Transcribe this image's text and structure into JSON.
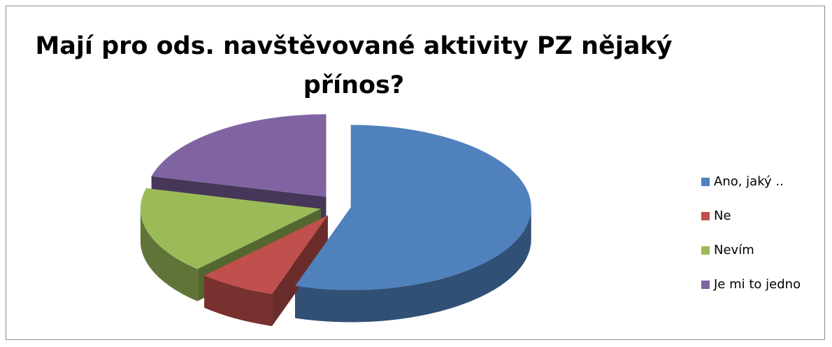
{
  "chart_data": {
    "type": "pie",
    "title": "Mají pro ods. navštěvované aktivity PZ nějaký přínos?",
    "title_lines": [
      "Mají pro ods. navštěvované aktivity PZ nějaký",
      "přínos?"
    ],
    "categories": [
      "Ano, jaký ..",
      "Ne",
      "Nevím",
      "Je mi to jedno"
    ],
    "values": [
      55,
      7,
      17,
      21
    ],
    "colors": [
      "#4f81bd",
      "#c0504d",
      "#9bbb59",
      "#8064a2"
    ],
    "exploded": true,
    "three_d": true,
    "legend_position": "right"
  }
}
